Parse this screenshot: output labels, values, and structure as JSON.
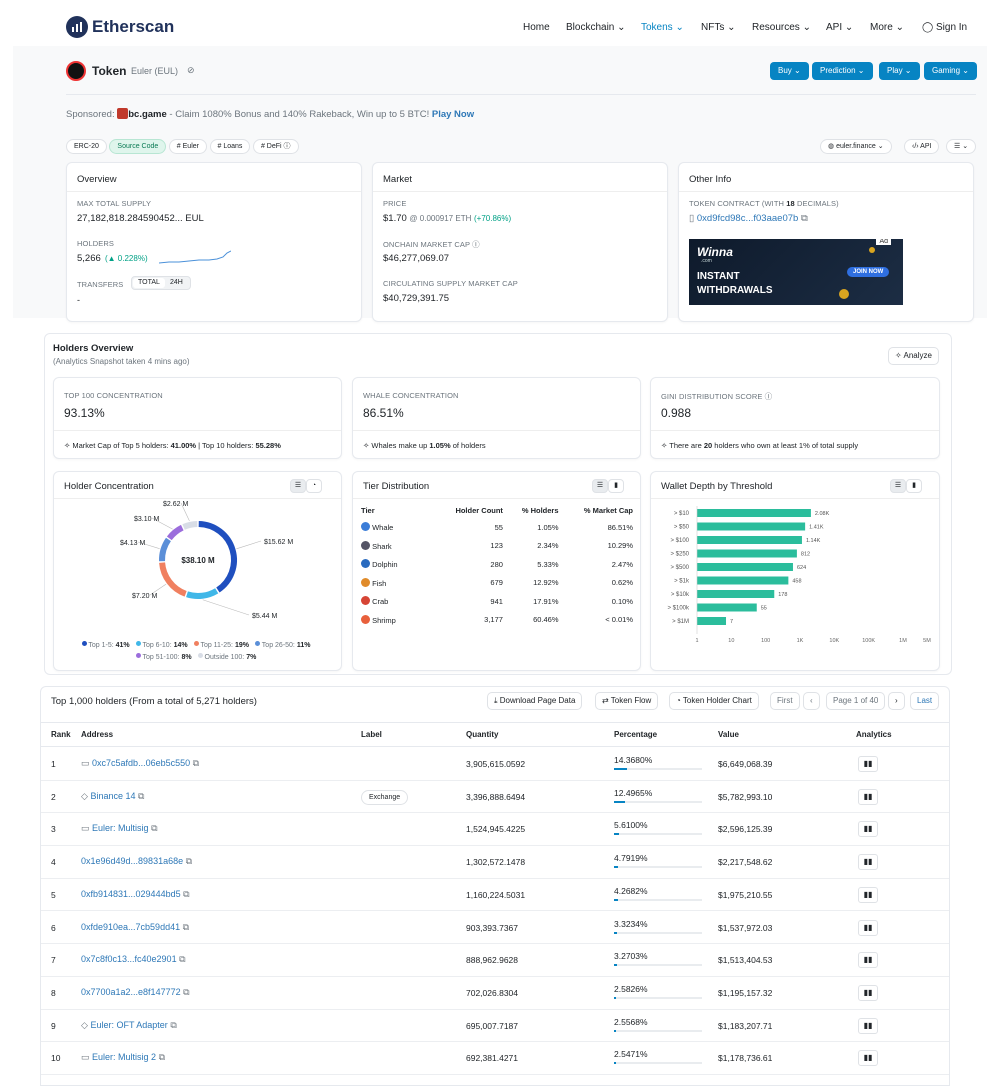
{
  "brand": "Etherscan",
  "nav": [
    "Home",
    "Blockchain",
    "Tokens",
    "NFTs",
    "Resources",
    "API",
    "More",
    "Sign In"
  ],
  "token": {
    "label": "Token",
    "name": "Euler (EUL)"
  },
  "actions": [
    "Buy",
    "Prediction",
    "Play",
    "Gaming"
  ],
  "sponsor": {
    "prefix": "Sponsored:",
    "name": "bc.game",
    "text": " - Claim 1080% Bonus and 140% Rakeback, Win up to 5 BTC!",
    "cta": "Play Now"
  },
  "tags": [
    "ERC-20",
    "Source Code",
    "# Euler",
    "# Loans",
    "# DeFi"
  ],
  "links": {
    "site": "euler.finance",
    "api": "API"
  },
  "overview": {
    "title": "Overview",
    "supply_label": "MAX TOTAL SUPPLY",
    "supply": "27,182,818.284590452... EUL",
    "holders_label": "HOLDERS",
    "holders": "5,266",
    "holders_change": "(▲ 0.228%)",
    "transfers_label": "TRANSFERS",
    "tab_total": "TOTAL",
    "tab_24h": "24H",
    "transfers": "-"
  },
  "market": {
    "title": "Market",
    "price_label": "PRICE",
    "price": "$1.70",
    "price_eth": "@ 0.000917 ETH",
    "price_change": "(+70.86%)",
    "onchain_label": "ONCHAIN MARKET CAP",
    "onchain": "$46,277,069.07",
    "circ_label": "CIRCULATING SUPPLY MARKET CAP",
    "circ": "$40,729,391.75"
  },
  "other": {
    "title": "Other Info",
    "contract_label": "TOKEN CONTRACT (WITH",
    "contract_dec": "18",
    "contract_label2": "DECIMALS)",
    "contract": "0xd9fcd98c...f03aae07b",
    "ad": "Ad",
    "ad_brand": "Winna",
    "ad_brand_sub": ".com",
    "ad_line1": "INSTANT",
    "ad_line2": "WITHDRAWALS",
    "ad_btn": "JOIN NOW"
  },
  "holders_overview": {
    "title": "Holders Overview",
    "subtitle": "(Analytics Snapshot taken 4 mins ago)",
    "analyze": "Analyze",
    "top100_label": "TOP 100 CONCENTRATION",
    "top100": "93.13%",
    "top100_note_a": "Market Cap of Top 5 holders: ",
    "top100_note_b": "41.00%",
    "top100_note_c": " | Top 10 holders: ",
    "top100_note_d": "55.28%",
    "whale_label": "WHALE CONCENTRATION",
    "whale": "86.51%",
    "whale_note_a": "Whales make up ",
    "whale_note_b": "1.05%",
    "whale_note_c": " of holders",
    "gini_label": "GINI DISTRIBUTION SCORE",
    "gini": "0.988",
    "gini_note_a": "There are ",
    "gini_note_b": "20",
    "gini_note_c": " holders who own at least 1% of total supply"
  },
  "holder_concentration": {
    "title": "Holder Concentration",
    "center": "$38.10 M",
    "slices": [
      {
        "label": "$15.62 M",
        "value": 15.62,
        "color": "#1f4fbf"
      },
      {
        "label": "$5.44 M",
        "value": 5.44,
        "color": "#40b7e8"
      },
      {
        "label": "$7.20 M",
        "value": 7.2,
        "color": "#f08060"
      },
      {
        "label": "$4.13 M",
        "value": 4.13,
        "color": "#5b8fd8"
      },
      {
        "label": "$3.10 M",
        "value": 3.1,
        "color": "#9b6ddc"
      },
      {
        "label": "$2.62 M",
        "value": 2.62,
        "color": "#d8dde6"
      }
    ],
    "legend": [
      {
        "name": "Top 1-5:",
        "pct": "41%",
        "color": "#1f4fbf"
      },
      {
        "name": "Top 6-10:",
        "pct": "14%",
        "color": "#40b7e8"
      },
      {
        "name": "Top 11-25:",
        "pct": "19%",
        "color": "#f08060"
      },
      {
        "name": "Top 26-50:",
        "pct": "11%",
        "color": "#5b8fd8"
      },
      {
        "name": "Top 51-100:",
        "pct": "8%",
        "color": "#9b6ddc"
      },
      {
        "name": "Outside 100:",
        "pct": "7%",
        "color": "#d8dde6"
      }
    ]
  },
  "tier": {
    "title": "Tier Distribution",
    "headers": [
      "Tier",
      "Holder Count",
      "% Holders",
      "% Market Cap"
    ],
    "rows": [
      {
        "icon": "whale-icon",
        "tier": "Whale",
        "count": "55",
        "holders": "1.05%",
        "cap": "86.51%"
      },
      {
        "icon": "shark-icon",
        "tier": "Shark",
        "count": "123",
        "holders": "2.34%",
        "cap": "10.29%"
      },
      {
        "icon": "dolphin-icon",
        "tier": "Dolphin",
        "count": "280",
        "holders": "5.33%",
        "cap": "2.47%"
      },
      {
        "icon": "fish-icon",
        "tier": "Fish",
        "count": "679",
        "holders": "12.92%",
        "cap": "0.62%"
      },
      {
        "icon": "crab-icon",
        "tier": "Crab",
        "count": "941",
        "holders": "17.91%",
        "cap": "0.10%"
      },
      {
        "icon": "shrimp-icon",
        "tier": "Shrimp",
        "count": "3,177",
        "holders": "60.46%",
        "cap": "< 0.01%"
      }
    ]
  },
  "chart_data": {
    "type": "bar",
    "title": "Wallet Depth by Threshold",
    "orientation": "horizontal",
    "scale": "log",
    "categories": [
      "> $10",
      "> $50",
      "> $100",
      "> $250",
      "> $500",
      "> $1k",
      "> $10k",
      "> $100k",
      "> $1M"
    ],
    "values": [
      2080,
      1410,
      1140,
      812,
      624,
      458,
      178,
      55,
      7
    ],
    "value_labels": [
      "2.08K",
      "1.41K",
      "1.14K",
      "812",
      "624",
      "458",
      "178",
      "55",
      "7"
    ],
    "xticks": [
      "1",
      "10",
      "100",
      "1K",
      "10K",
      "100K",
      "1M",
      "5M"
    ],
    "xlim": [
      1,
      5000000
    ],
    "color": "#2bbd9c"
  },
  "top": {
    "title": "Top 1,000 holders (From a total of 5,271 holders)",
    "download": "Download Page Data",
    "flow": "Token Flow",
    "chart": "Token Holder Chart",
    "first": "First",
    "page": "Page 1 of 40",
    "last": "Last",
    "headers": [
      "Rank",
      "Address",
      "Label",
      "Quantity",
      "Percentage",
      "Value",
      "Analytics"
    ],
    "rows": [
      {
        "rank": "1",
        "addr": "0xc7c5afdb...06eb5c550",
        "label": "",
        "qty": "3,905,615.0592",
        "pct": "14.3680%",
        "pv": 0.14368,
        "val": "$6,649,068.39",
        "contract": true
      },
      {
        "rank": "2",
        "addr": "Binance 14",
        "label": "Exchange",
        "qty": "3,396,888.6494",
        "pct": "12.4965%",
        "pv": 0.124965,
        "val": "$5,782,993.10",
        "contract": false
      },
      {
        "rank": "3",
        "addr": "Euler: Multisig",
        "label": "",
        "qty": "1,524,945.4225",
        "pct": "5.6100%",
        "pv": 0.0561,
        "val": "$2,596,125.39",
        "contract": true
      },
      {
        "rank": "4",
        "addr": "0x1e96d49d...89831a68e",
        "label": "",
        "qty": "1,302,572.1478",
        "pct": "4.7919%",
        "pv": 0.047919,
        "val": "$2,217,548.62",
        "contract": false
      },
      {
        "rank": "5",
        "addr": "0xfb914831...029444bd5",
        "label": "",
        "qty": "1,160,224.5031",
        "pct": "4.2682%",
        "pv": 0.042682,
        "val": "$1,975,210.55",
        "contract": false
      },
      {
        "rank": "6",
        "addr": "0xfde910ea...7cb59dd41",
        "label": "",
        "qty": "903,393.7367",
        "pct": "3.3234%",
        "pv": 0.033234,
        "val": "$1,537,972.03",
        "contract": false
      },
      {
        "rank": "7",
        "addr": "0x7c8f0c13...fc40e2901",
        "label": "",
        "qty": "888,962.9628",
        "pct": "3.2703%",
        "pv": 0.032703,
        "val": "$1,513,404.53",
        "contract": false
      },
      {
        "rank": "8",
        "addr": "0x7700a1a2...e8f147772",
        "label": "",
        "qty": "702,026.8304",
        "pct": "2.5826%",
        "pv": 0.025826,
        "val": "$1,195,157.32",
        "contract": false
      },
      {
        "rank": "9",
        "addr": "Euler: OFT Adapter",
        "label": "",
        "qty": "695,007.7187",
        "pct": "2.5568%",
        "pv": 0.025568,
        "val": "$1,183,207.71",
        "contract": false
      },
      {
        "rank": "10",
        "addr": "Euler: Multisig 2",
        "label": "",
        "qty": "692,381.4271",
        "pct": "2.5471%",
        "pv": 0.025471,
        "val": "$1,178,736.61",
        "contract": true
      }
    ]
  }
}
